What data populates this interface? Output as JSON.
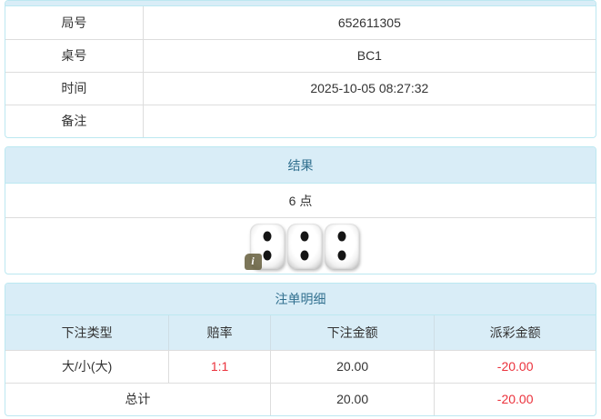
{
  "theme": {
    "header_bg": "#d9edf7",
    "header_text": "#31708f",
    "panel_border": "#bce8f1",
    "divider": "#dddddd",
    "body_text": "#333333",
    "red": "#eb323c"
  },
  "info_table": {
    "rows": [
      {
        "label": "局号",
        "value": "652611305"
      },
      {
        "label": "桌号",
        "value": "BC1"
      },
      {
        "label": "时间",
        "value": "2025-10-05 08:27:32"
      },
      {
        "label": "备注",
        "value": ""
      }
    ]
  },
  "result_panel": {
    "title": "结果",
    "points": "6 点",
    "dice": [
      2,
      2,
      2
    ],
    "dice_total": 6,
    "info_badge": "i"
  },
  "bets_panel": {
    "title": "注单明细",
    "columns": [
      "下注类型",
      "赔率",
      "下注金额",
      "派彩金额"
    ],
    "rows": [
      {
        "type": "大/小(大)",
        "odds": "1:1",
        "amount": "20.00",
        "payout": "-20.00"
      }
    ],
    "total": {
      "label": "总计",
      "amount": "20.00",
      "payout": "-20.00"
    }
  }
}
